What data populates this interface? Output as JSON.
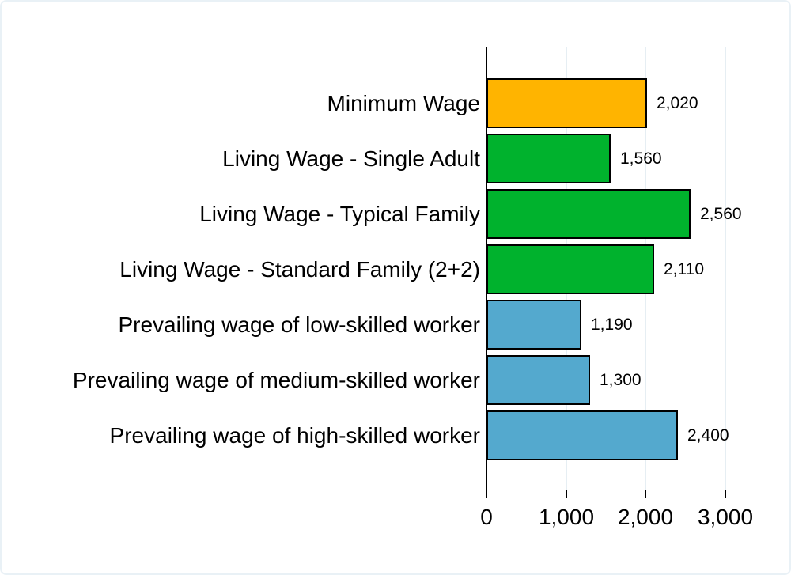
{
  "chart_data": {
    "type": "bar",
    "orientation": "horizontal",
    "title": "",
    "xlabel": "",
    "ylabel": "",
    "categories": [
      "Minimum Wage",
      "Living Wage - Single Adult",
      "Living Wage - Typical Family",
      "Living Wage - Standard Family (2+2)",
      "Prevailing wage of low-skilled worker",
      "Prevailing wage of medium-skilled worker",
      "Prevailing wage of high-skilled worker"
    ],
    "values": [
      2020,
      1560,
      2560,
      2110,
      1190,
      1300,
      2400
    ],
    "value_labels": [
      "2,020",
      "1,560",
      "2,560",
      "2,110",
      "1,190",
      "1,300",
      "2,400"
    ],
    "bar_colors": [
      "#ffb400",
      "#00b22d",
      "#00b22d",
      "#00b22d",
      "#54a9ce",
      "#54a9ce",
      "#54a9ce"
    ],
    "x_ticks": [
      {
        "value": 0,
        "label": "0"
      },
      {
        "value": 1000,
        "label": "1,000"
      },
      {
        "value": 2000,
        "label": "2,000"
      },
      {
        "value": 3000,
        "label": "3,000"
      }
    ],
    "xlim": [
      0,
      3600
    ],
    "grid": true,
    "legend": "none"
  },
  "colors": {
    "background": "#ffffff",
    "frame_border": "#e9f1f6",
    "gridline": "#e6eef3",
    "axis": "#000000",
    "text": "#000000",
    "minimum_wage": "#ffb400",
    "living_wage": "#00b22d",
    "prevailing_wage": "#54a9ce"
  }
}
